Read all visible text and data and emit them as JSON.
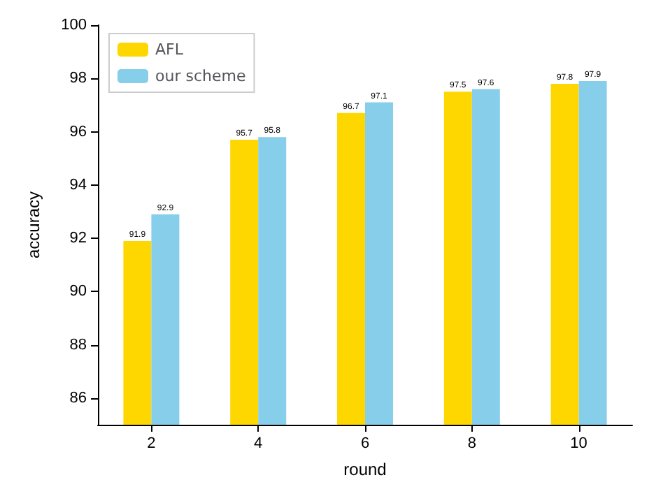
{
  "chart_data": {
    "type": "bar",
    "xlabel": "round",
    "ylabel": "accuracy",
    "categories": [
      "2",
      "4",
      "6",
      "8",
      "10"
    ],
    "series": [
      {
        "name": "AFL",
        "color": "#ffd700",
        "values": [
          91.9,
          95.7,
          96.7,
          97.5,
          97.8
        ]
      },
      {
        "name": "our scheme",
        "color": "#87ceeb",
        "values": [
          92.9,
          95.8,
          97.1,
          97.6,
          97.9
        ]
      }
    ],
    "ylim": [
      85,
      100
    ],
    "yticks": [
      86,
      88,
      90,
      92,
      94,
      96,
      98,
      100
    ],
    "data_labels": true,
    "legend": "top left",
    "grid": false
  }
}
